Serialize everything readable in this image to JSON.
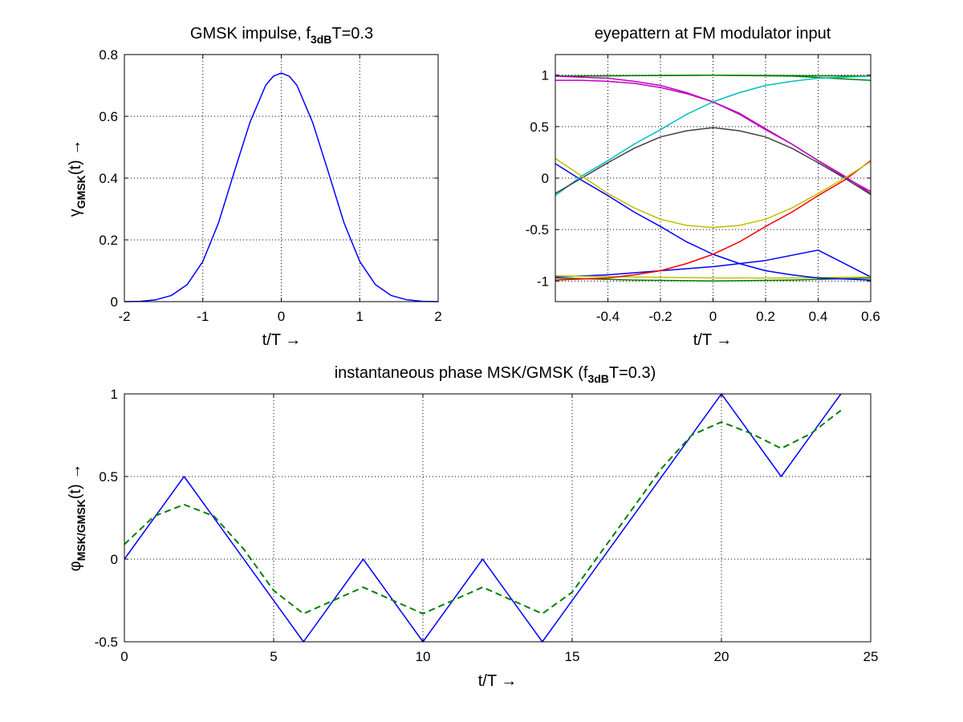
{
  "chart_data": [
    {
      "type": "line",
      "title_main": "GMSK impulse,  f",
      "title_sub": "3dB",
      "title_tail": "T=0.3",
      "xlabel": "t/T →",
      "ylabel_main": "γ",
      "ylabel_sub": "GMSK",
      "ylabel_tail": "(t) →",
      "xlim": [
        -2,
        2
      ],
      "ylim": [
        0,
        0.8
      ],
      "xticks": [
        -2,
        -1,
        0,
        1,
        2
      ],
      "xtick_labels": [
        "-2",
        "-1",
        "0",
        "1",
        "2"
      ],
      "yticks": [
        0,
        0.2,
        0.4,
        0.6,
        0.8
      ],
      "ytick_labels": [
        "0",
        "0.2",
        "0.4",
        "0.6",
        "0.8"
      ],
      "grid": true,
      "series": [
        {
          "color": "#0000ff",
          "dashed": false,
          "x": [
            -2,
            -1.8,
            -1.6,
            -1.4,
            -1.2,
            -1.0,
            -0.8,
            -0.6,
            -0.4,
            -0.2,
            -0.1,
            0,
            0.1,
            0.2,
            0.4,
            0.6,
            0.8,
            1.0,
            1.2,
            1.4,
            1.6,
            1.8,
            2
          ],
          "y": [
            0.0,
            0.001,
            0.006,
            0.02,
            0.055,
            0.13,
            0.255,
            0.42,
            0.58,
            0.7,
            0.73,
            0.74,
            0.73,
            0.7,
            0.58,
            0.42,
            0.255,
            0.13,
            0.055,
            0.02,
            0.006,
            0.001,
            0.0
          ]
        }
      ]
    },
    {
      "type": "line",
      "title": "eyepattern at FM modulator input",
      "xlabel": "t/T →",
      "xlim": [
        -0.6,
        0.6
      ],
      "ylim": [
        -1.2,
        1.2
      ],
      "xticks": [
        -0.4,
        -0.2,
        0,
        0.2,
        0.4,
        0.6
      ],
      "xtick_labels": [
        "-0.4",
        "-0.2",
        "0",
        "0.2",
        "0.4",
        "0.6"
      ],
      "yticks": [
        -1,
        -0.5,
        0,
        0.5,
        1
      ],
      "ytick_labels": [
        "-1",
        "-0.5",
        "0",
        "0.5",
        "1"
      ],
      "grid": true,
      "series": [
        {
          "color": "#008000",
          "dashed": false,
          "x": [
            -0.6,
            -0.3,
            0,
            0.3,
            0.6
          ],
          "y": [
            0.99,
            0.995,
            1.0,
            0.995,
            0.99
          ]
        },
        {
          "color": "#008000",
          "dashed": false,
          "x": [
            -0.6,
            0,
            0.3,
            0.6
          ],
          "y": [
            0.99,
            1.0,
            0.99,
            0.95
          ]
        },
        {
          "color": "#008000",
          "dashed": false,
          "x": [
            -0.6,
            -0.3,
            0,
            0.3,
            0.6
          ],
          "y": [
            -0.97,
            -0.99,
            -1.0,
            -0.99,
            -0.97
          ]
        },
        {
          "color": "#0000ff",
          "dashed": false,
          "x": [
            -0.6,
            -0.4,
            -0.2,
            0,
            0.2,
            0.4,
            0.6
          ],
          "y": [
            -0.96,
            -0.94,
            -0.9,
            -0.86,
            -0.8,
            -0.7,
            -0.96
          ]
        },
        {
          "color": "#bfbf00",
          "dashed": false,
          "x": [
            -0.6,
            -0.3,
            0,
            0.3,
            0.6
          ],
          "y": [
            -0.95,
            -0.96,
            -0.97,
            -0.97,
            -0.96
          ]
        },
        {
          "color": "#0000ff",
          "dashed": false,
          "x": [
            -0.6,
            -0.5,
            -0.4,
            -0.3,
            -0.2,
            -0.1,
            0,
            0.1,
            0.2,
            0.3,
            0.4,
            0.5,
            0.6
          ],
          "y": [
            0.14,
            -0.02,
            -0.17,
            -0.33,
            -0.47,
            -0.62,
            -0.74,
            -0.83,
            -0.9,
            -0.94,
            -0.97,
            -0.98,
            -0.99
          ]
        },
        {
          "color": "#ff0000",
          "dashed": false,
          "x": [
            -0.6,
            -0.5,
            -0.4,
            -0.3,
            -0.2,
            -0.1,
            0,
            0.1,
            0.2,
            0.3,
            0.4,
            0.5,
            0.6
          ],
          "y": [
            -0.99,
            -0.98,
            -0.97,
            -0.94,
            -0.9,
            -0.83,
            -0.74,
            -0.62,
            -0.47,
            -0.33,
            -0.17,
            -0.02,
            0.17
          ]
        },
        {
          "color": "#bf00bf",
          "dashed": false,
          "x": [
            -0.6,
            -0.5,
            -0.4,
            -0.3,
            -0.2,
            -0.1,
            0,
            0.1,
            0.2,
            0.3,
            0.4,
            0.5,
            0.6
          ],
          "y": [
            0.99,
            0.98,
            0.97,
            0.94,
            0.9,
            0.83,
            0.74,
            0.62,
            0.47,
            0.33,
            0.17,
            0.02,
            -0.15
          ]
        },
        {
          "color": "#bf00bf",
          "dashed": false,
          "x": [
            -0.6,
            -0.5,
            -0.4,
            -0.3,
            -0.2,
            -0.1,
            0,
            0.1,
            0.2,
            0.3,
            0.4,
            0.5,
            0.6
          ],
          "y": [
            0.95,
            0.95,
            0.94,
            0.92,
            0.88,
            0.82,
            0.74,
            0.63,
            0.48,
            0.33,
            0.17,
            0.01,
            -0.13
          ]
        },
        {
          "color": "#00bfbf",
          "dashed": false,
          "x": [
            -0.6,
            -0.5,
            -0.4,
            -0.3,
            -0.2,
            -0.1,
            0,
            0.1,
            0.2,
            0.3,
            0.4,
            0.5,
            0.6
          ],
          "y": [
            -0.17,
            0.02,
            0.17,
            0.33,
            0.47,
            0.62,
            0.74,
            0.83,
            0.9,
            0.94,
            0.97,
            0.98,
            0.99
          ]
        },
        {
          "color": "#404040",
          "dashed": false,
          "x": [
            -0.6,
            -0.5,
            -0.4,
            -0.3,
            -0.2,
            -0.1,
            0,
            0.1,
            0.2,
            0.3,
            0.4,
            0.5,
            0.6
          ],
          "y": [
            -0.15,
            0.0,
            0.15,
            0.29,
            0.4,
            0.46,
            0.49,
            0.46,
            0.4,
            0.29,
            0.15,
            0.0,
            -0.16
          ]
        },
        {
          "color": "#bfbf00",
          "dashed": false,
          "x": [
            -0.6,
            -0.5,
            -0.4,
            -0.3,
            -0.2,
            -0.1,
            0,
            0.1,
            0.2,
            0.3,
            0.4,
            0.5,
            0.6
          ],
          "y": [
            0.19,
            0.02,
            -0.15,
            -0.29,
            -0.4,
            -0.46,
            -0.48,
            -0.46,
            -0.4,
            -0.29,
            -0.15,
            0.0,
            0.16
          ]
        }
      ]
    },
    {
      "type": "line",
      "title_main": "instantaneous phase MSK/GMSK (f",
      "title_sub": "3dB",
      "title_tail": "T=0.3)",
      "xlabel": "t/T →",
      "ylabel_main": "φ",
      "ylabel_sub": "MSK/GMSK",
      "ylabel_tail": "(t) →",
      "xlim": [
        0,
        25
      ],
      "ylim": [
        -0.5,
        1
      ],
      "xticks": [
        0,
        5,
        10,
        15,
        20,
        25
      ],
      "xtick_labels": [
        "0",
        "5",
        "10",
        "15",
        "20",
        "25"
      ],
      "yticks": [
        -0.5,
        0,
        0.5,
        1
      ],
      "ytick_labels": [
        "-0.5",
        "0",
        "0.5",
        "1"
      ],
      "grid": true,
      "series": [
        {
          "color": "#0000ff",
          "dashed": false,
          "x": [
            0,
            2,
            6,
            8,
            10,
            12,
            14,
            20,
            22,
            24
          ],
          "y": [
            0,
            0.5,
            -0.5,
            0,
            -0.5,
            0,
            -0.5,
            1,
            0.5,
            1
          ]
        },
        {
          "color": "#008000",
          "dashed": true,
          "x": [
            0,
            1,
            2,
            3,
            4,
            5,
            6,
            7,
            8,
            9,
            10,
            11,
            12,
            13,
            14,
            15,
            16,
            17,
            18,
            19,
            20,
            21,
            22,
            23,
            24
          ],
          "y": [
            0.09,
            0.26,
            0.33,
            0.26,
            0.06,
            -0.19,
            -0.33,
            -0.25,
            -0.17,
            -0.25,
            -0.33,
            -0.25,
            -0.17,
            -0.25,
            -0.33,
            -0.2,
            0.05,
            0.3,
            0.55,
            0.75,
            0.83,
            0.76,
            0.67,
            0.76,
            0.9
          ]
        }
      ]
    }
  ]
}
